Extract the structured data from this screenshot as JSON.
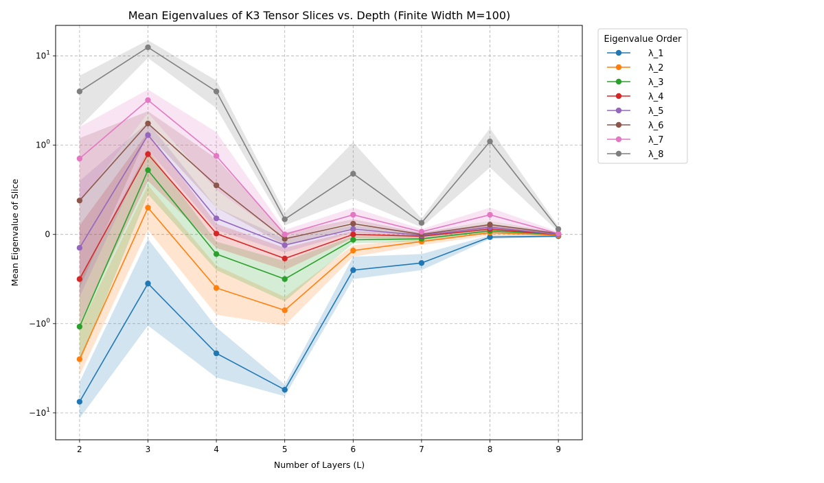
{
  "chart_data": {
    "type": "line",
    "title": "Mean Eigenvalues of K3 Tensor Slices vs. Depth (Finite Width M=100)",
    "xlabel": "Number of Layers (L)",
    "ylabel": "Mean Eigenvalue of Slice",
    "y_scale": "symlog",
    "y_scale_linthresh": 1,
    "xlim": [
      1.65,
      9.35
    ],
    "ylim": [
      -20,
      22
    ],
    "x_ticks": [
      "2",
      "3",
      "4",
      "5",
      "6",
      "7",
      "8",
      "9"
    ],
    "y_ticks": [
      {
        "value": 10,
        "label": "10^1"
      },
      {
        "value": 1,
        "label": "10^0"
      },
      {
        "value": 0,
        "label": "0"
      },
      {
        "value": -1,
        "label": "−10^0"
      },
      {
        "value": -10,
        "label": "−10^1"
      }
    ],
    "grid": true,
    "legend": {
      "title": "Eigenvalue Order",
      "placement": "outside right"
    },
    "x": [
      2,
      3,
      4,
      5,
      6,
      7,
      8,
      9
    ],
    "series": [
      {
        "name": "λ_1",
        "color": "#1f77b4",
        "values": [
          -7.5,
          -0.55,
          -2.15,
          -5.5,
          -0.4,
          -0.32,
          -0.03,
          -0.02
        ],
        "lower": [
          -11.5,
          -1.05,
          -4.0,
          -6.5,
          -0.5,
          -0.4,
          -0.05,
          -0.03
        ],
        "upper": [
          -4.5,
          -0.05,
          -1.1,
          -4.8,
          -0.25,
          -0.22,
          -0.01,
          -0.01
        ]
      },
      {
        "name": "λ_2",
        "color": "#ff7f0e",
        "values": [
          -2.5,
          0.3,
          -0.6,
          -0.85,
          -0.18,
          -0.08,
          0.02,
          -0.01
        ],
        "lower": [
          -3.8,
          0.05,
          -0.9,
          -1.05,
          -0.25,
          -0.12,
          -0.01,
          -0.02
        ],
        "upper": [
          -1.1,
          0.55,
          -0.35,
          -0.7,
          -0.12,
          -0.05,
          0.04,
          0.01
        ]
      },
      {
        "name": "λ_3",
        "color": "#2ca02c",
        "values": [
          -1.08,
          0.72,
          -0.22,
          -0.5,
          -0.06,
          -0.05,
          0.04,
          0.0
        ],
        "lower": [
          -2.8,
          0.45,
          -0.4,
          -0.75,
          -0.1,
          -0.08,
          0.01,
          -0.01
        ],
        "upper": [
          -0.5,
          0.95,
          -0.08,
          -0.3,
          -0.02,
          -0.02,
          0.07,
          0.01
        ]
      },
      {
        "name": "λ_4",
        "color": "#d62728",
        "values": [
          -0.5,
          0.9,
          0.01,
          -0.27,
          0.0,
          -0.02,
          0.06,
          0.0
        ],
        "lower": [
          -1.0,
          0.6,
          -0.15,
          -0.4,
          -0.04,
          -0.05,
          0.03,
          -0.01
        ],
        "upper": [
          0.1,
          1.4,
          0.12,
          -0.15,
          0.04,
          0.01,
          0.1,
          0.02
        ]
      },
      {
        "name": "λ_5",
        "color": "#9467bd",
        "values": [
          -0.15,
          1.3,
          0.18,
          -0.12,
          0.06,
          -0.01,
          0.08,
          0.0
        ],
        "lower": [
          -0.7,
          0.95,
          0.05,
          -0.2,
          0.02,
          -0.03,
          0.05,
          -0.01
        ],
        "upper": [
          0.6,
          1.8,
          0.3,
          -0.05,
          0.1,
          0.02,
          0.12,
          0.02
        ]
      },
      {
        "name": "λ_6",
        "color": "#8c564b",
        "values": [
          0.38,
          1.75,
          0.55,
          -0.05,
          0.12,
          0.0,
          0.11,
          0.01
        ],
        "lower": [
          -0.6,
          1.35,
          0.3,
          -0.12,
          0.07,
          -0.02,
          0.07,
          0.0
        ],
        "upper": [
          1.2,
          2.4,
          0.85,
          0.02,
          0.17,
          0.02,
          0.15,
          0.02
        ]
      },
      {
        "name": "λ_7",
        "color": "#e377c2",
        "values": [
          0.85,
          3.2,
          0.88,
          0.0,
          0.22,
          0.03,
          0.22,
          0.01
        ],
        "lower": [
          0.35,
          2.3,
          0.5,
          -0.05,
          0.14,
          0.0,
          0.15,
          0.0
        ],
        "upper": [
          1.6,
          4.2,
          1.4,
          0.05,
          0.3,
          0.06,
          0.3,
          0.03
        ]
      },
      {
        "name": "λ_8",
        "color": "#7f7f7f",
        "values": [
          4.0,
          12.5,
          4.0,
          0.17,
          0.68,
          0.13,
          1.1,
          0.06
        ],
        "lower": [
          1.6,
          9.5,
          2.6,
          0.1,
          0.4,
          0.08,
          0.75,
          0.03
        ],
        "upper": [
          6.0,
          15.0,
          5.3,
          0.25,
          1.08,
          0.18,
          1.55,
          0.09
        ]
      }
    ]
  }
}
